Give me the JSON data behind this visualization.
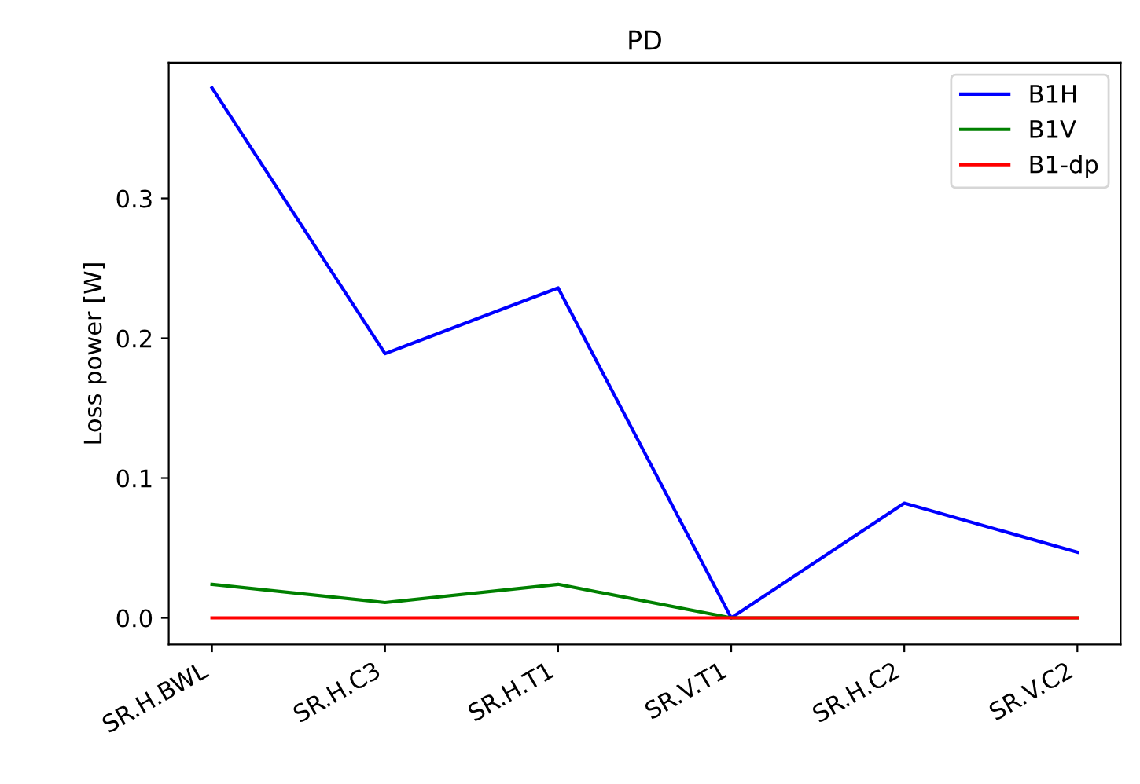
{
  "chart_data": {
    "type": "line",
    "title": "PD",
    "ylabel": "Loss power [W]",
    "categories": [
      "SR.H.BWL",
      "SR.H.C3",
      "SR.H.T1",
      "SR.V.T1",
      "SR.H.C2",
      "SR.V.C2"
    ],
    "series": [
      {
        "name": "B1H",
        "color": "#0000ff",
        "values": [
          0.379,
          0.189,
          0.236,
          0.0,
          0.082,
          0.047
        ]
      },
      {
        "name": "B1V",
        "color": "#008000",
        "values": [
          0.024,
          0.011,
          0.024,
          0.0,
          0.0,
          0.0
        ]
      },
      {
        "name": "B1-dp",
        "color": "#ff0000",
        "values": [
          0.0,
          0.0,
          0.0,
          0.0,
          0.0,
          0.0
        ]
      }
    ],
    "ylim": [
      -0.019,
      0.397
    ],
    "yticks": [
      {
        "value": 0.0,
        "label": "0.0"
      },
      0.1,
      0.2,
      0.3
    ],
    "legend": "top right",
    "grid": false
  }
}
